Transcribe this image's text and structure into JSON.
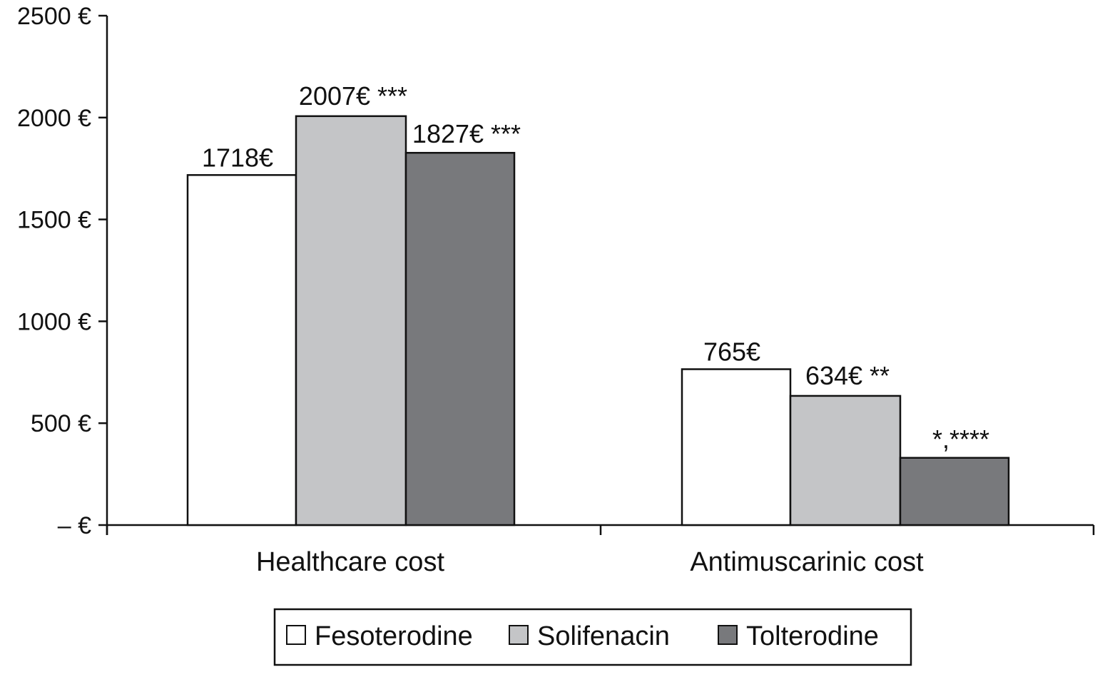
{
  "chart_data": {
    "type": "bar",
    "categories": [
      "Healthcare cost",
      "Antimuscarinic cost"
    ],
    "series": [
      {
        "name": "Fesoterodine",
        "values": [
          1718,
          765
        ],
        "color": "#ffffff",
        "labels": [
          "1718€",
          "765€"
        ]
      },
      {
        "name": "Solifenacin",
        "values": [
          2007,
          634
        ],
        "color": "#c4c5c7",
        "labels": [
          "2007€ ***",
          "634€ **"
        ]
      },
      {
        "name": "Tolterodine",
        "values": [
          1827,
          330
        ],
        "color": "#78797c",
        "labels": [
          "1827€ ***",
          "*,****"
        ]
      }
    ],
    "y_ticks": [
      {
        "value": 0,
        "label": "– €"
      },
      {
        "value": 500,
        "label": "500 €"
      },
      {
        "value": 1000,
        "label": "1000 €"
      },
      {
        "value": 1500,
        "label": "1500 €"
      },
      {
        "value": 2000,
        "label": "2000 €"
      },
      {
        "value": 2500,
        "label": "2500 €"
      }
    ],
    "ylim": [
      0,
      2500
    ],
    "title": "",
    "xlabel": "",
    "ylabel": "",
    "grid": false,
    "legend_position": "bottom"
  }
}
